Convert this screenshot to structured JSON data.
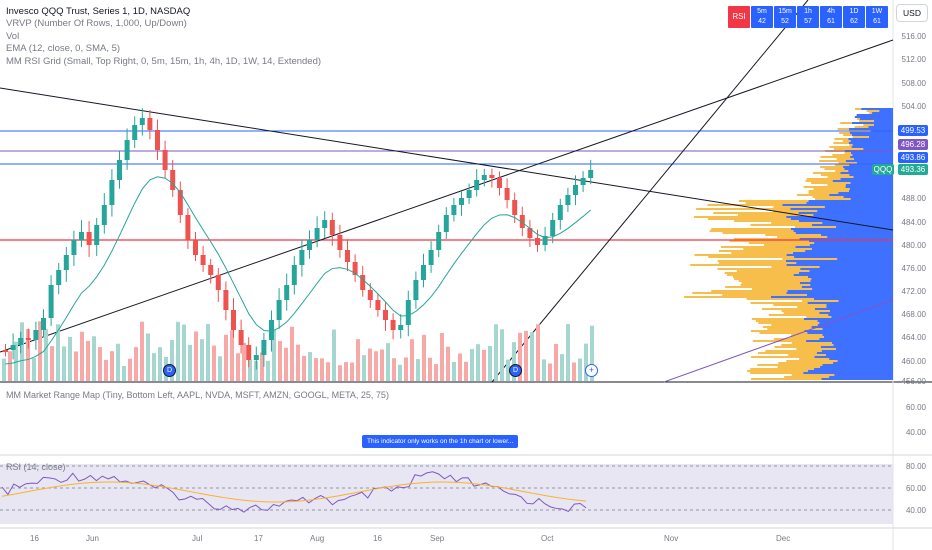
{
  "legend": {
    "title": "Invesco QQQ Trust, Series 1, 1D, NASDAQ",
    "lines": [
      "VRVP (Number Of Rows, 1,000, Up/Down)",
      "Vol",
      "EMA (12, close, 0, SMA, 5)",
      "MM RSI Grid (Small, Top Right, 0, 5m, 15m, 1h, 4h, 1D, 1W, 14, Extended)"
    ]
  },
  "rsi_grid": {
    "header": "RSI",
    "cells": [
      {
        "tf": "5m",
        "val": "42"
      },
      {
        "tf": "15m",
        "val": "52"
      },
      {
        "tf": "1h",
        "val": "57"
      },
      {
        "tf": "4h",
        "val": "61"
      },
      {
        "tf": "1D",
        "val": "62"
      },
      {
        "tf": "1W",
        "val": "61"
      }
    ]
  },
  "currency_button": "USD",
  "price_axis": [
    "516.00",
    "512.00",
    "508.00",
    "504.00",
    "488.00",
    "484.00",
    "480.00",
    "476.00",
    "472.00",
    "468.00",
    "464.00",
    "460.00"
  ],
  "price_axis_bottom": "456.00",
  "price_tags": {
    "p1": "499.53",
    "p2": "496.28",
    "p3": "493.86",
    "p4": "493.36",
    "symbol": "QQQ"
  },
  "colors": {
    "up": "#26a69a",
    "down": "#ef5350",
    "accent": "#2962ff",
    "rsi": "#7e57c2",
    "ema": "#26a69a",
    "vpUp": "#f7b32b",
    "vpDown": "#2962ff"
  },
  "market_range_pane": {
    "title": "MM Market Range Map (Tiny, Bottom Left, AAPL, NVDA, MSFT, AMZN, GOOGL, META, 25, 75)",
    "axis": [
      "60.00",
      "40.00"
    ],
    "notice": "This indicator only works on the 1h chart or lower..."
  },
  "rsi_pane": {
    "title": "RSI (14, close)",
    "axis": [
      "80.00",
      "60.00",
      "40.00"
    ]
  },
  "time_axis": [
    "16",
    "Jun",
    "Jul",
    "17",
    "Aug",
    "16",
    "Sep",
    "Oct",
    "Nov",
    "Dec"
  ],
  "dividend_marker": "D",
  "plus_marker": "+"
}
